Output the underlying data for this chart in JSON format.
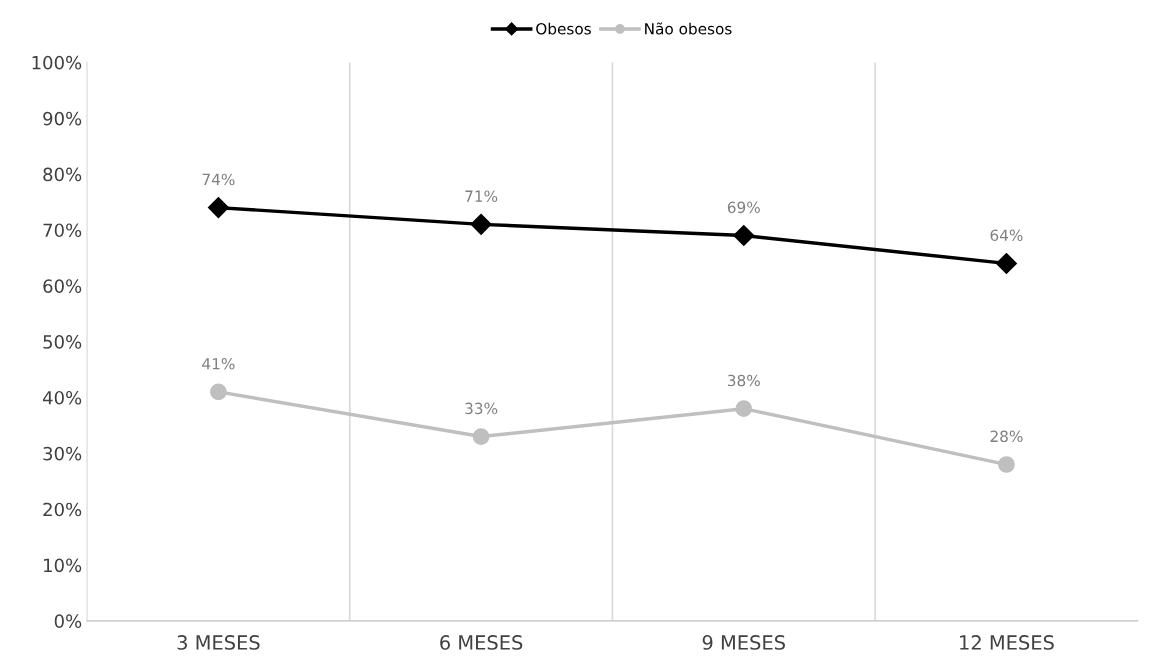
{
  "chart_data": {
    "type": "line",
    "categories": [
      "3 MESES",
      "6 MESES",
      "9 MESES",
      "12 MESES"
    ],
    "series": [
      {
        "name": "Obesos",
        "color": "#000000",
        "marker": "diamond",
        "values": [
          74,
          71,
          69,
          64
        ],
        "value_labels": [
          "74%",
          "71%",
          "69%",
          "64%"
        ]
      },
      {
        "name": "Não obesos",
        "color": "#bfbfbf",
        "marker": "circle",
        "values": [
          41,
          33,
          38,
          28
        ],
        "value_labels": [
          "41%",
          "33%",
          "38%",
          "28%"
        ]
      }
    ],
    "ylim": [
      0,
      100
    ],
    "yticks": [
      {
        "value": 0,
        "label": "0%"
      },
      {
        "value": 10,
        "label": "10%"
      },
      {
        "value": 20,
        "label": "20%"
      },
      {
        "value": 30,
        "label": "30%"
      },
      {
        "value": 40,
        "label": "40%"
      },
      {
        "value": 50,
        "label": "50%"
      },
      {
        "value": 60,
        "label": "60%"
      },
      {
        "value": 70,
        "label": "70%"
      },
      {
        "value": 80,
        "label": "80%"
      },
      {
        "value": 90,
        "label": "90%"
      },
      {
        "value": 100,
        "label": "100%"
      }
    ],
    "grid": "x",
    "legend": "top",
    "line_style": "solid"
  }
}
